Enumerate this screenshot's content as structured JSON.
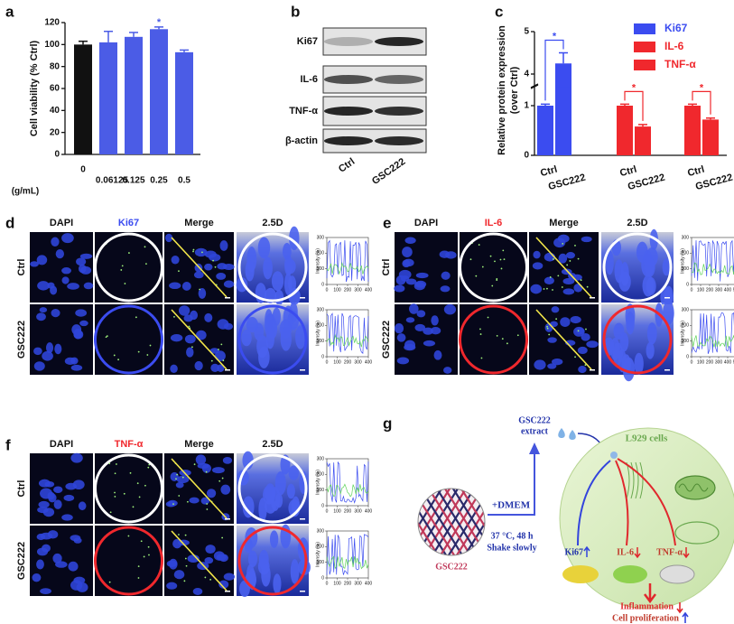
{
  "panel_labels": [
    "a",
    "b",
    "c",
    "d",
    "e",
    "f",
    "g"
  ],
  "chart_data": [
    {
      "type": "bar",
      "ylabel": "Cell viability (% Ctrl)",
      "xlabel": "(g/mL)",
      "categories": [
        "0",
        "0.06125",
        "0.125",
        "0.25",
        "0.5"
      ],
      "values": [
        100,
        102,
        107,
        114,
        93
      ],
      "errors": [
        3,
        10,
        4,
        2,
        2
      ],
      "colors": [
        "#111111",
        "#4b5ce6",
        "#4b5ce6",
        "#4b5ce6",
        "#4b5ce6"
      ],
      "ylim": [
        0,
        120
      ],
      "yticks": [
        0,
        20,
        40,
        60,
        80,
        100,
        120
      ],
      "annotations": [
        {
          "label": "*",
          "category": "0.25"
        }
      ]
    },
    {
      "type": "bar",
      "ylabel": [
        "Relative protein expression",
        "(over Ctrl)"
      ],
      "categories": [
        "Ctrl",
        "GSC222"
      ],
      "series": [
        {
          "name": "Ki67",
          "color": "#3b4cf0",
          "values": [
            1.0,
            4.25
          ],
          "errors": [
            0.03,
            0.25
          ],
          "significance": "*"
        },
        {
          "name": "IL-6",
          "color": "#f0282d",
          "values": [
            1.0,
            0.58
          ],
          "errors": [
            0.03,
            0.04
          ],
          "significance": "*"
        },
        {
          "name": "TNF-α",
          "color": "#f0282d",
          "values": [
            1.0,
            0.72
          ],
          "errors": [
            0.03,
            0.03
          ],
          "significance": "*"
        }
      ],
      "ylim": [
        0,
        5
      ],
      "ybreak": [
        1.4,
        3.7
      ],
      "yticks": [
        0,
        1,
        4,
        5
      ],
      "legend": "top-right"
    }
  ],
  "blot": {
    "proteins": [
      "Ki67",
      "IL-6",
      "TNF-α",
      "β-actin"
    ],
    "lanes": [
      "Ctrl",
      "GSC222"
    ]
  },
  "imaging": [
    {
      "columns": [
        "DAPI",
        "Ki67",
        "Merge",
        "2.5D"
      ],
      "header_color": "#3b4cf0",
      "rows": [
        "Ctrl",
        "GSC222"
      ],
      "ring_colors": [
        "#ffffff",
        "#3b4cf0"
      ],
      "profile": {
        "ylabel": "Intensity (%)",
        "ylim": [
          0,
          300
        ],
        "yticks": [
          0,
          100,
          200,
          300
        ],
        "xlim": [
          0,
          400
        ],
        "xticks": [
          0,
          100,
          200,
          300,
          400
        ]
      }
    },
    {
      "columns": [
        "DAPI",
        "IL-6",
        "Merge",
        "2.5D"
      ],
      "header_color": "#f0282d",
      "rows": [
        "Ctrl",
        "GSC222"
      ],
      "ring_colors": [
        "#ffffff",
        "#f0282d"
      ],
      "profile": {
        "ylabel": "Intensity (%)",
        "ylim": [
          0,
          300
        ],
        "yticks": [
          0,
          100,
          200,
          300
        ],
        "xlim": [
          0,
          500
        ],
        "xticks": [
          0,
          100,
          200,
          300,
          400,
          500
        ]
      }
    },
    {
      "columns": [
        "DAPI",
        "TNF-α",
        "Merge",
        "2.5D"
      ],
      "header_color": "#f0282d",
      "rows": [
        "Ctrl",
        "GSC222"
      ],
      "ring_colors": [
        "#ffffff",
        "#f0282d"
      ],
      "profile": {
        "ylabel": "Intensity (%)",
        "ylim": [
          0,
          300
        ],
        "yticks": [
          0,
          100,
          200,
          300
        ],
        "xlim": [
          0,
          400
        ],
        "xticks": [
          0,
          100,
          200,
          300,
          400
        ]
      }
    }
  ],
  "schematic": {
    "material": "GSC222",
    "medium": "+DMEM",
    "conditions": [
      "37 °C, 48 h",
      "Shake slowly"
    ],
    "extract": [
      "GSC222",
      "extract"
    ],
    "cells": "L929 cells",
    "markers": [
      "Ki67",
      "IL-6",
      "TNF-α"
    ],
    "outcomes": [
      "Inflammation",
      "Cell proliferation"
    ]
  }
}
